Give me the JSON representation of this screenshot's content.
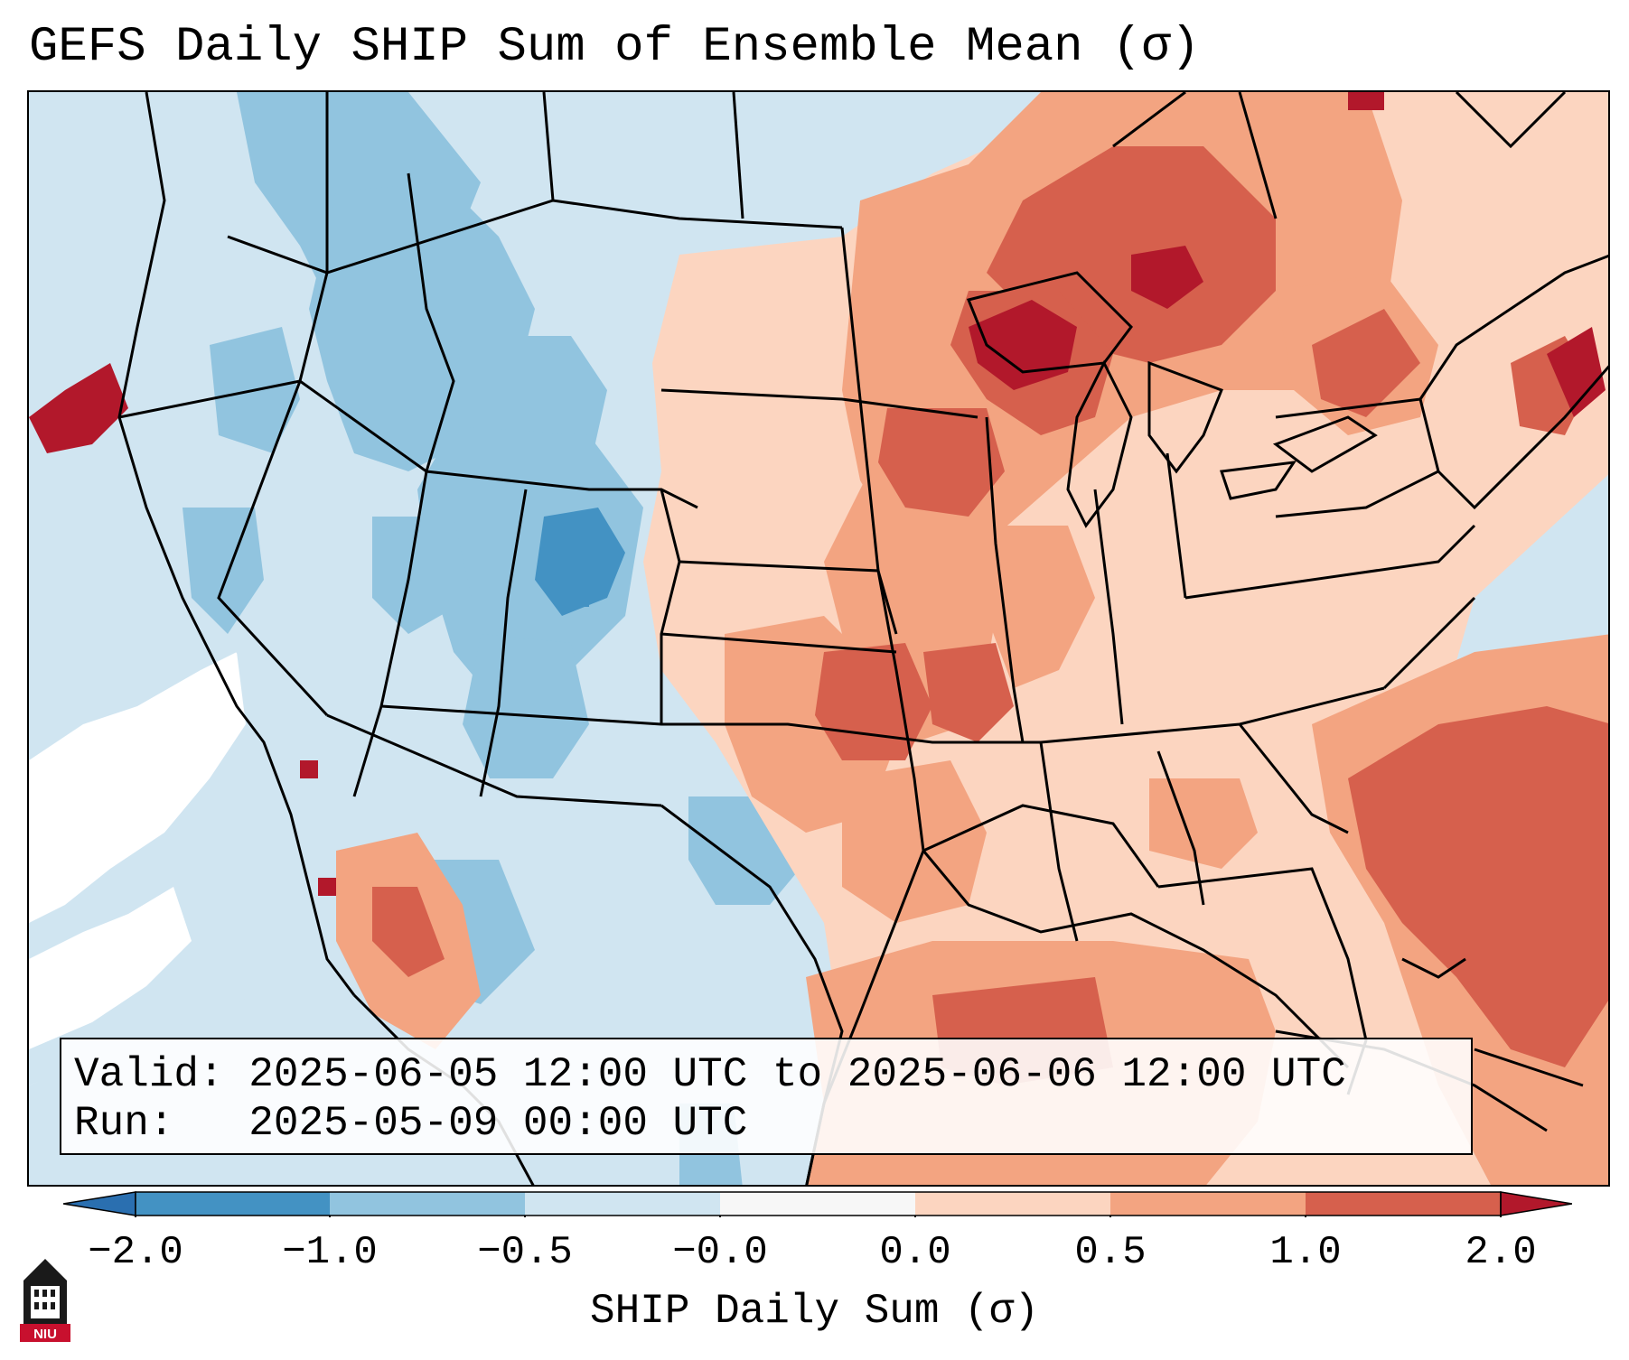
{
  "title": "GEFS Daily SHIP Sum of Ensemble Mean (σ)",
  "info": {
    "valid_label": "Valid:",
    "valid_value": "2025-06-05 12:00 UTC to 2025-06-06 12:00 UTC",
    "run_label": "Run:",
    "run_value": "2025-05-09 00:00 UTC"
  },
  "colorbar": {
    "label": "SHIP Daily Sum (σ)",
    "ticks": [
      "−2.0",
      "−1.0",
      "−0.5",
      "−0.0",
      "0.0",
      "0.5",
      "1.0",
      "2.0"
    ],
    "colors": [
      "#4392c3",
      "#91c4df",
      "#d0e5f1",
      "#f7f7f7",
      "#fcd5c0",
      "#f3a481",
      "#d6604d",
      "#b2182b"
    ],
    "extend_under_color": "#2a6fb0",
    "extend_over_color": "#b2182b"
  },
  "map": {
    "ocean_color": "#d0e5f1",
    "no_data_color": "#ffffff",
    "border_color": "#000000",
    "regions": {
      "pacific_northwest": "light-blue",
      "northern_rockies": "mid-blue",
      "colorado_core": "blue",
      "great_lakes": "dark-red",
      "upper_midwest": "red",
      "central_plains": "salmon",
      "southeast_atlantic": "red",
      "gulf_of_mexico": "salmon",
      "new_england": "dark-red"
    }
  },
  "logo": {
    "text": "NIU",
    "icon": "niu-tower-logo-icon"
  }
}
